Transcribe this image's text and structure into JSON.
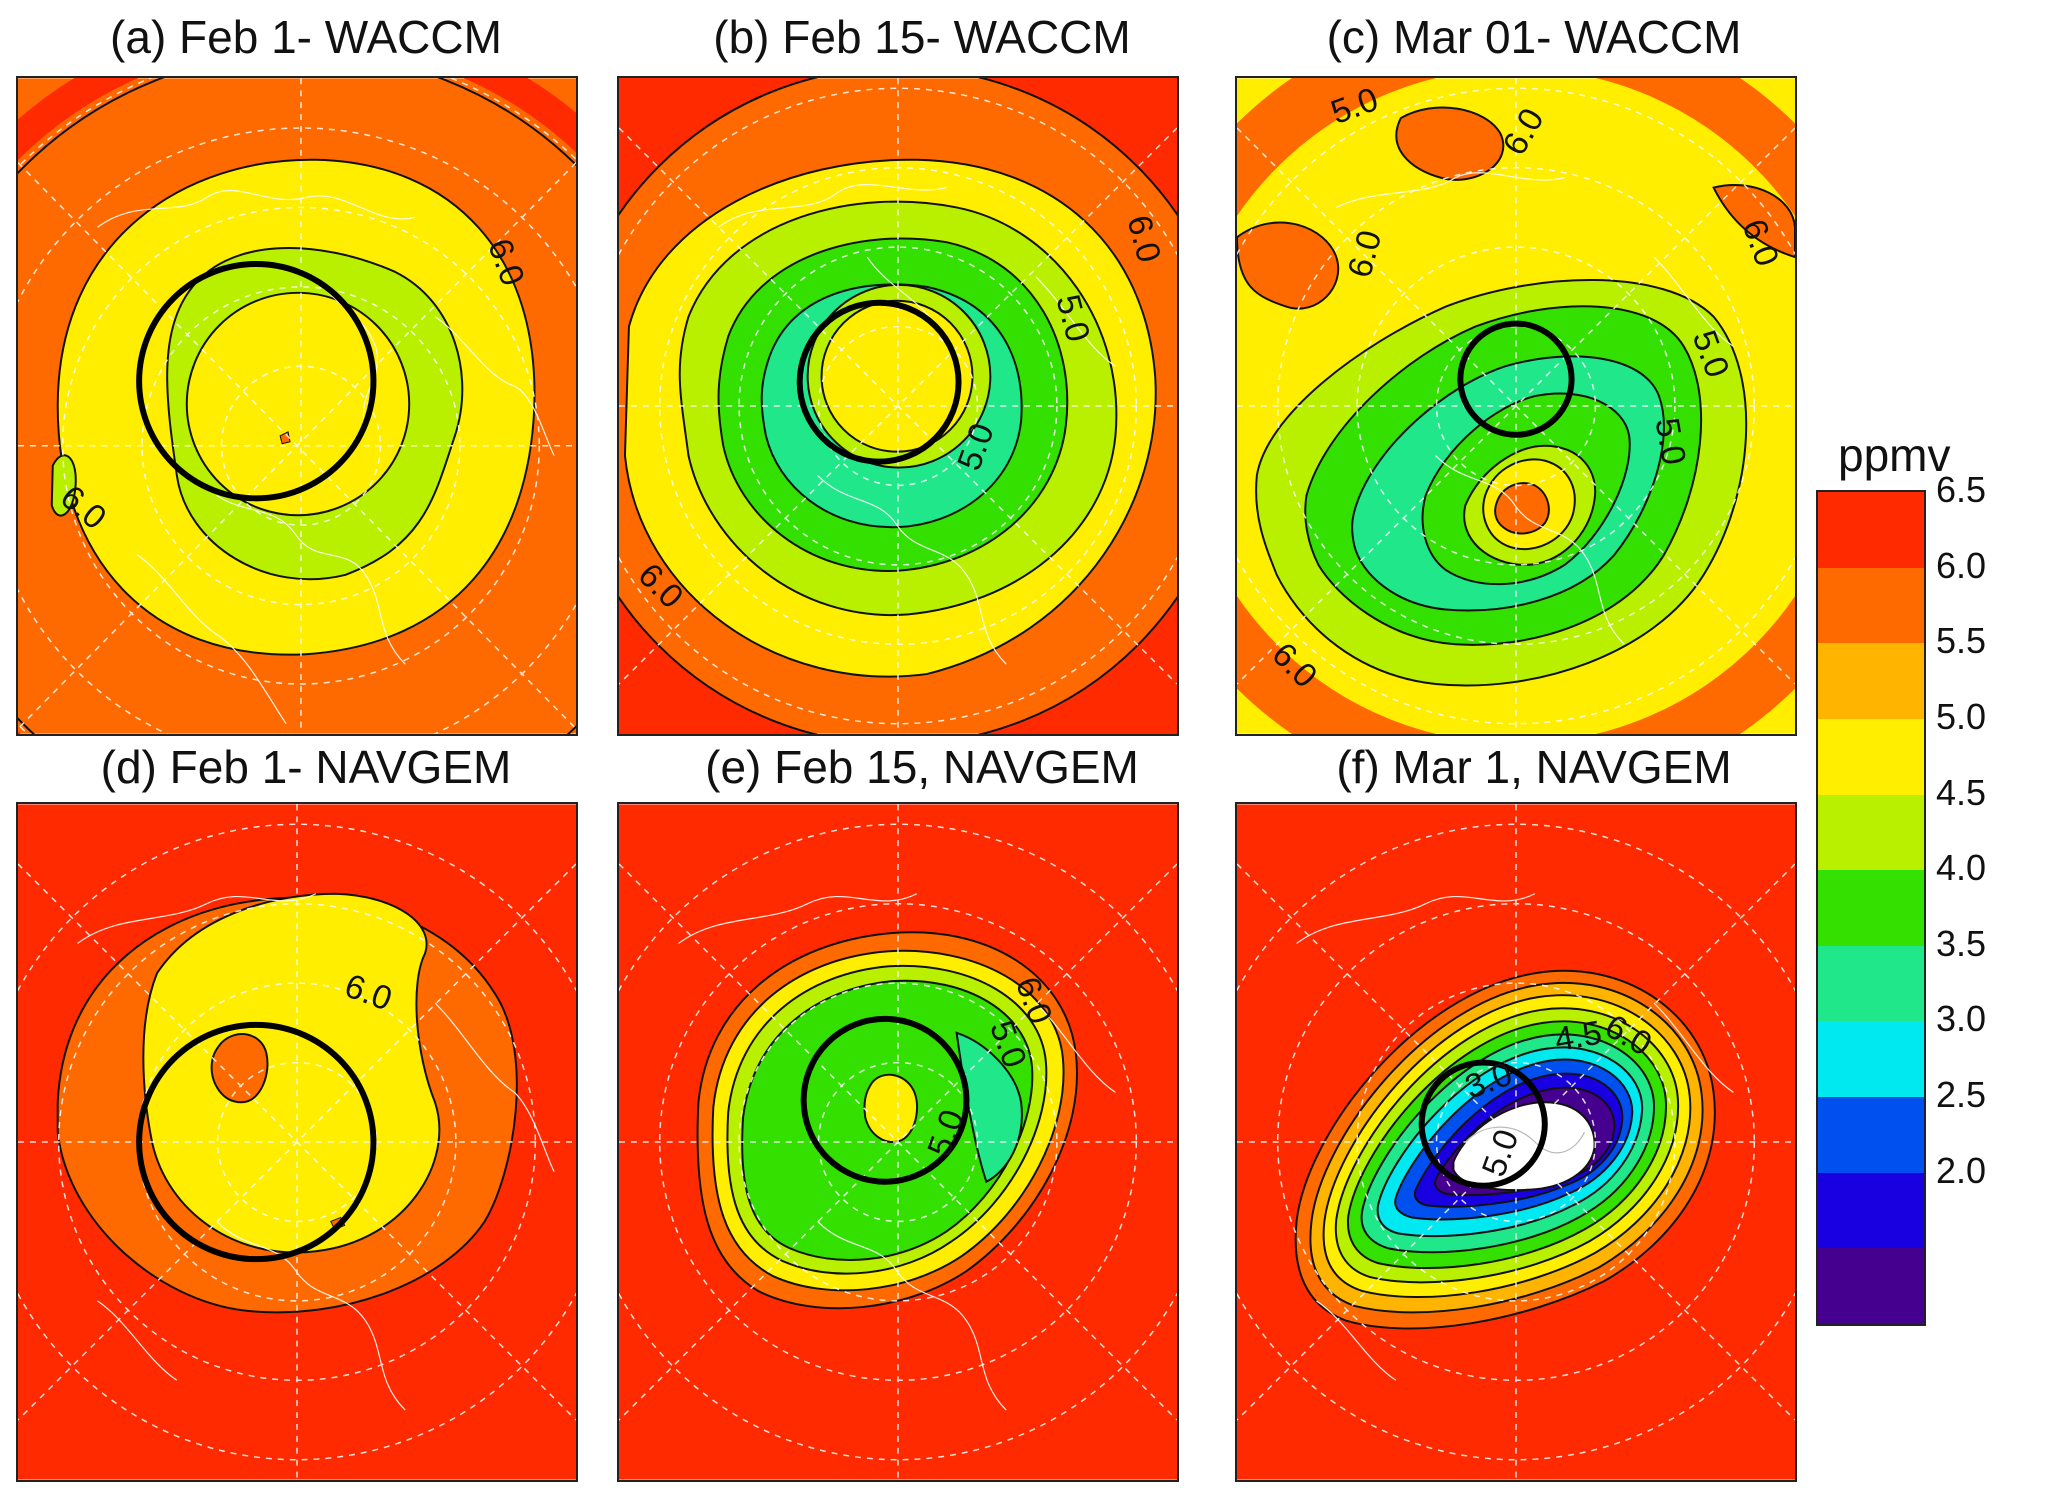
{
  "units": "ppmv",
  "colorbar": {
    "ticks": [
      "6.5",
      "6.0",
      "5.5",
      "5.0",
      "4.5",
      "4.0",
      "3.5",
      "3.0",
      "2.5",
      "2.0"
    ],
    "colors": [
      "#ff2a00",
      "#ff6a00",
      "#ffb400",
      "#ffee00",
      "#b8f000",
      "#33e000",
      "#20e88a",
      "#00e8f0",
      "#0050f0",
      "#1800e0",
      "#460090"
    ]
  },
  "panels": [
    {
      "title": "(a) Feb 1- WACCM",
      "labels": [
        {
          "text": "6.0"
        },
        {
          "text": "6.0"
        }
      ]
    },
    {
      "title": "(b) Feb 15- WACCM",
      "labels": [
        {
          "text": "6.0"
        },
        {
          "text": "5.0"
        },
        {
          "text": "5.0"
        },
        {
          "text": "6.0"
        }
      ]
    },
    {
      "title": "(c) Mar 01- WACCM",
      "labels": [
        {
          "text": "5.0"
        },
        {
          "text": "6.0"
        },
        {
          "text": "6.0"
        },
        {
          "text": "6.0"
        },
        {
          "text": "5.0"
        },
        {
          "text": "5.0"
        },
        {
          "text": "6.0"
        }
      ]
    },
    {
      "title": "(d) Feb 1- NAVGEM",
      "labels": [
        {
          "text": "6.0"
        }
      ]
    },
    {
      "title": "(e) Feb 15, NAVGEM",
      "labels": [
        {
          "text": "6.0"
        },
        {
          "text": "5.0"
        },
        {
          "text": "5.0"
        }
      ]
    },
    {
      "title": "(f) Mar 1, NAVGEM",
      "labels": [
        {
          "text": "3.0"
        },
        {
          "text": "4.5"
        },
        {
          "text": "6.0"
        },
        {
          "text": "5.0"
        }
      ]
    }
  ]
}
